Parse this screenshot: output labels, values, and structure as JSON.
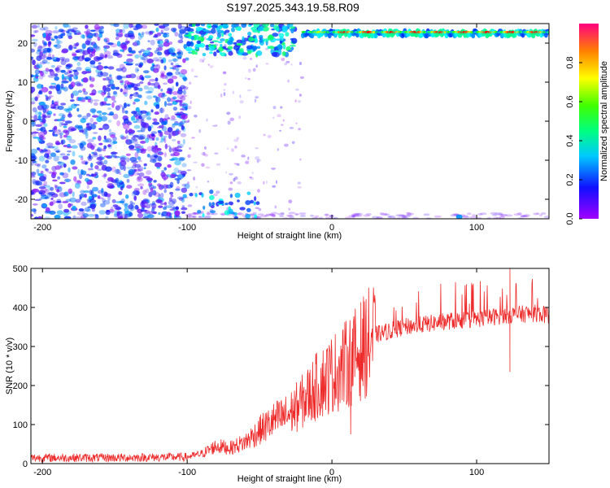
{
  "title": "S197.2025.343.19.58.R09",
  "colors": {
    "spectrogram_low": "#8000ff",
    "spectrogram_high": "#ff0000",
    "snr_line": "#ee2b2b"
  },
  "chart_data": [
    {
      "type": "heatmap",
      "title": "S197.2025.343.19.58.R09",
      "xlabel": "Height of straight line (km)",
      "ylabel": "Frequency (Hz)",
      "xlim": [
        -208,
        150
      ],
      "ylim": [
        -25,
        25
      ],
      "x_ticks": [
        -200,
        -100,
        0,
        100
      ],
      "y_ticks": [
        20,
        10,
        0,
        -10,
        -20
      ],
      "colorbar": {
        "label": "Normalized spectral amplitude",
        "range": [
          0.0,
          1.0
        ],
        "ticks": [
          "0.0",
          "0.2",
          "0.4",
          "0.6",
          "0.8"
        ],
        "colormap": "rainbow (purple-blue-cyan-green-yellow-red)"
      },
      "regions": [
        {
          "feature": "scattered low-amplitude speckle",
          "x_range": [
            -208,
            -100
          ],
          "freq_range": [
            -25,
            25
          ],
          "amplitude": "0.1-0.3"
        },
        {
          "feature": "sparse faint speckle",
          "x_range": [
            -100,
            -30
          ],
          "freq_range": [
            -25,
            25
          ],
          "amplitude": "0.0-0.15"
        },
        {
          "feature": "blobs near upper edge",
          "x_range": [
            -100,
            -30
          ],
          "freq_range": [
            17,
            25
          ],
          "amplitude": "0.2-0.5"
        },
        {
          "feature": "narrow strong tone band",
          "x_range": [
            -20,
            150
          ],
          "freq_range": [
            21,
            24
          ],
          "amplitude": "0.4-1.0"
        },
        {
          "feature": "blobs near lower edge",
          "x_range": [
            -100,
            -45
          ],
          "freq_range": [
            -25,
            -18
          ],
          "amplitude": "0.2-0.4"
        }
      ]
    },
    {
      "type": "line",
      "xlabel": "Height of straight line (km)",
      "ylabel": "SNR (10 * v/v)",
      "xlim": [
        -208,
        150
      ],
      "ylim": [
        0,
        500
      ],
      "x_ticks": [
        -200,
        -100,
        0,
        100
      ],
      "y_ticks": [
        0,
        100,
        200,
        300,
        400,
        500
      ],
      "trend": {
        "x": [
          -208,
          -150,
          -100,
          -90,
          -80,
          -70,
          -60,
          -50,
          -40,
          -30,
          -20,
          -10,
          0,
          10,
          20,
          30,
          50,
          80,
          100,
          120,
          140,
          150
        ],
        "y": [
          15,
          15,
          17,
          25,
          45,
          40,
          55,
          85,
          110,
          125,
          160,
          200,
          230,
          255,
          290,
          330,
          350,
          365,
          370,
          380,
          385,
          380
        ]
      },
      "notable_points": [
        {
          "x": 13,
          "y": 75
        },
        {
          "x": 123,
          "y": 235
        },
        {
          "x": 123,
          "y": 500
        }
      ]
    }
  ]
}
